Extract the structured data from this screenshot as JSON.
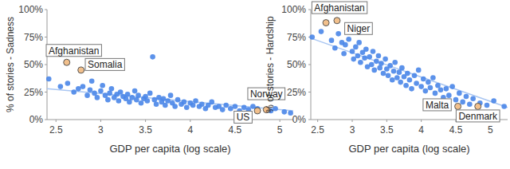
{
  "chart_data": [
    {
      "type": "scatter",
      "x_label": "GDP per capita (log scale)",
      "y_label": "% of stories - Sadness",
      "xlim": [
        2.4,
        5.15
      ],
      "ylim": [
        0,
        100
      ],
      "xticks": [
        2.5,
        3,
        3.5,
        4,
        4.5,
        5
      ],
      "yticks": [
        {
          "value": 0,
          "label": "0%"
        },
        {
          "value": 25,
          "label": "25%"
        },
        {
          "value": 50,
          "label": "50%"
        },
        {
          "value": 75,
          "label": "75%"
        },
        {
          "value": 100,
          "label": "100%"
        }
      ],
      "color": "#4a86e8",
      "x": [
        2.42,
        2.55,
        2.63,
        2.7,
        2.75,
        2.8,
        2.85,
        2.88,
        2.9,
        2.93,
        2.96,
        3.0,
        3.02,
        3.05,
        3.08,
        3.1,
        3.12,
        3.15,
        3.18,
        3.2,
        3.22,
        3.25,
        3.28,
        3.3,
        3.32,
        3.35,
        3.38,
        3.4,
        3.42,
        3.45,
        3.48,
        3.5,
        3.52,
        3.55,
        3.58,
        3.6,
        3.62,
        3.65,
        3.68,
        3.7,
        3.72,
        3.75,
        3.78,
        3.8,
        3.83,
        3.86,
        3.9,
        3.93,
        3.96,
        4.0,
        4.03,
        4.06,
        4.1,
        4.13,
        4.17,
        4.2,
        4.24,
        4.28,
        4.32,
        4.36,
        4.4,
        4.45,
        4.5,
        4.55,
        4.6,
        4.65,
        4.7,
        4.75,
        4.9,
        4.95,
        5.05,
        5.12
      ],
      "values": [
        37,
        30,
        33,
        25,
        28,
        30,
        22,
        27,
        35,
        24,
        20,
        26,
        31,
        22,
        18,
        24,
        28,
        20,
        23,
        17,
        25,
        21,
        19,
        23,
        16,
        20,
        26,
        18,
        22,
        15,
        19,
        21,
        17,
        24,
        57,
        18,
        14,
        20,
        16,
        19,
        13,
        17,
        22,
        15,
        12,
        18,
        14,
        16,
        11,
        15,
        13,
        17,
        12,
        14,
        10,
        13,
        16,
        11,
        12,
        9,
        13,
        10,
        12,
        8,
        11,
        9,
        12,
        10,
        8,
        10,
        7,
        6
      ],
      "trend_line": {
        "x": [
          2.4,
          5.15
        ],
        "values": [
          28,
          8
        ]
      },
      "annotations": [
        {
          "text": "Afghanistan",
          "x": 2.62,
          "y": 52
        },
        {
          "text": "Somalia",
          "x": 2.78,
          "y": 45
        },
        {
          "text": "Norway",
          "x": 4.85,
          "y": 9
        },
        {
          "text": "US",
          "x": 4.75,
          "y": 8
        }
      ]
    },
    {
      "type": "scatter",
      "x_label": "GDP per capita (log scale)",
      "y_label": "% of stories - Hardship",
      "xlim": [
        2.4,
        5.25
      ],
      "ylim": [
        0,
        100
      ],
      "xticks": [
        2.5,
        3,
        3.5,
        4,
        4.5,
        5
      ],
      "yticks": [
        {
          "value": 0,
          "label": "0%"
        },
        {
          "value": 25,
          "label": "25%"
        },
        {
          "value": 50,
          "label": "50%"
        },
        {
          "value": 75,
          "label": "75%"
        },
        {
          "value": 100,
          "label": "100%"
        }
      ],
      "color": "#4a86e8",
      "x": [
        2.42,
        2.55,
        2.7,
        2.75,
        2.8,
        2.85,
        2.88,
        2.9,
        2.95,
        3.0,
        3.02,
        3.05,
        3.08,
        3.1,
        3.12,
        3.15,
        3.18,
        3.2,
        3.22,
        3.25,
        3.28,
        3.3,
        3.32,
        3.35,
        3.38,
        3.4,
        3.42,
        3.45,
        3.48,
        3.5,
        3.52,
        3.55,
        3.58,
        3.6,
        3.62,
        3.65,
        3.68,
        3.7,
        3.72,
        3.75,
        3.78,
        3.8,
        3.83,
        3.86,
        3.9,
        3.93,
        3.96,
        4.0,
        4.03,
        4.06,
        4.1,
        4.13,
        4.17,
        4.2,
        4.24,
        4.28,
        4.32,
        4.36,
        4.4,
        4.45,
        4.5,
        4.55,
        4.6,
        4.65,
        4.7,
        4.75,
        4.85,
        4.95,
        5.05,
        5.2
      ],
      "values": [
        75,
        80,
        72,
        65,
        78,
        70,
        60,
        68,
        73,
        62,
        55,
        66,
        58,
        70,
        52,
        61,
        56,
        64,
        48,
        57,
        50,
        62,
        45,
        53,
        58,
        47,
        51,
        42,
        55,
        46,
        40,
        49,
        36,
        44,
        52,
        38,
        43,
        34,
        47,
        39,
        31,
        42,
        36,
        28,
        40,
        33,
        45,
        30,
        37,
        26,
        34,
        29,
        38,
        24,
        31,
        27,
        20,
        28,
        22,
        30,
        18,
        24,
        16,
        21,
        14,
        19,
        15,
        13,
        17,
        12
      ],
      "trend_line": {
        "x": [
          2.4,
          5.25
        ],
        "values": [
          74,
          11
        ]
      },
      "annotations": [
        {
          "text": "Afghanistan",
          "x": 2.62,
          "y": 88
        },
        {
          "text": "Niger",
          "x": 2.78,
          "y": 90
        },
        {
          "text": "Malta",
          "x": 4.53,
          "y": 12
        },
        {
          "text": "Denmark",
          "x": 4.82,
          "y": 12
        }
      ]
    }
  ]
}
